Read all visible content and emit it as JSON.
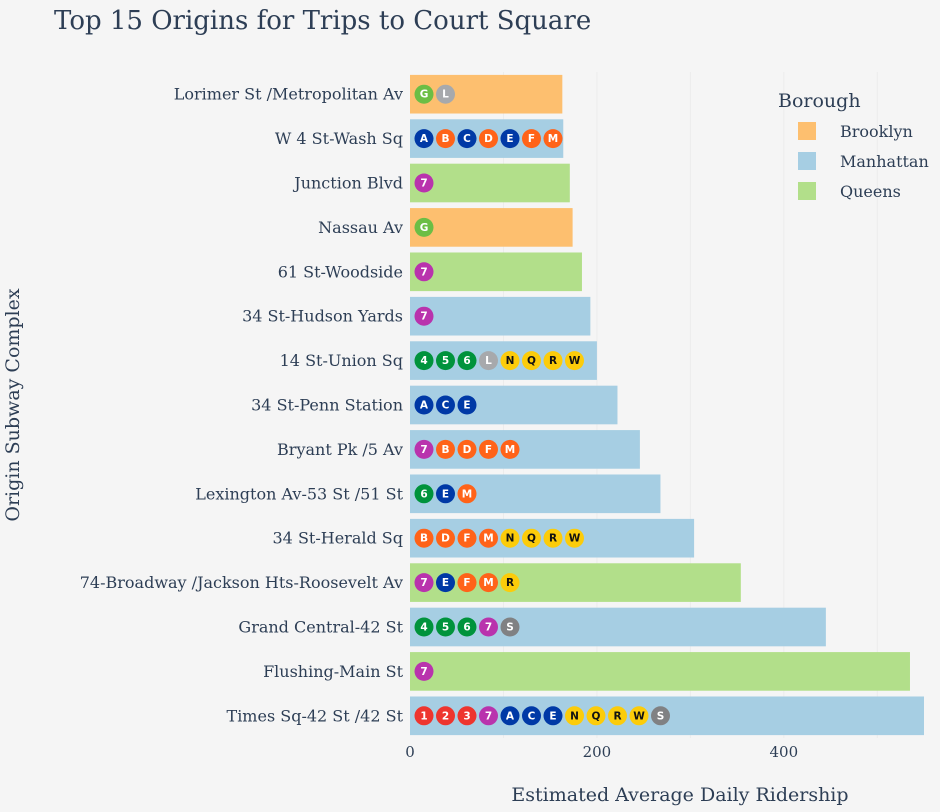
{
  "chart_data": {
    "type": "bar",
    "orientation": "horizontal",
    "title": "Top 15 Origins for Trips to Court Square",
    "xlabel": "Estimated Average Daily Ridership",
    "ylabel": "Origin Subway Complex",
    "xlim": [
      0,
      550
    ],
    "x_ticks": [
      0,
      200,
      400
    ],
    "grid": "vertical",
    "legend": {
      "title": "Borough",
      "placement": "top-right",
      "entries": [
        {
          "name": "Brooklyn",
          "color": "#fdbf6f"
        },
        {
          "name": "Manhattan",
          "color": "#a6cee3"
        },
        {
          "name": "Queens",
          "color": "#b2df8a"
        }
      ]
    },
    "bars": [
      {
        "label": "Lorimer St /Metropolitan Av",
        "value": 163,
        "borough": "Brooklyn",
        "lines": [
          "G",
          "L"
        ]
      },
      {
        "label": "W 4 St-Wash Sq",
        "value": 164,
        "borough": "Manhattan",
        "lines": [
          "A",
          "B",
          "C",
          "D",
          "E",
          "F",
          "M"
        ]
      },
      {
        "label": "Junction Blvd",
        "value": 171,
        "borough": "Queens",
        "lines": [
          "7"
        ]
      },
      {
        "label": "Nassau Av",
        "value": 174,
        "borough": "Brooklyn",
        "lines": [
          "G"
        ]
      },
      {
        "label": "61 St-Woodside",
        "value": 184,
        "borough": "Queens",
        "lines": [
          "7"
        ]
      },
      {
        "label": "34 St-Hudson Yards",
        "value": 193,
        "borough": "Manhattan",
        "lines": [
          "7"
        ]
      },
      {
        "label": "14 St-Union Sq",
        "value": 200,
        "borough": "Manhattan",
        "lines": [
          "4",
          "5",
          "6",
          "L",
          "N",
          "Q",
          "R",
          "W"
        ]
      },
      {
        "label": "34 St-Penn Station",
        "value": 222,
        "borough": "Manhattan",
        "lines": [
          "A",
          "C",
          "E"
        ]
      },
      {
        "label": "Bryant Pk /5 Av",
        "value": 246,
        "borough": "Manhattan",
        "lines": [
          "7",
          "B",
          "D",
          "F",
          "M"
        ]
      },
      {
        "label": "Lexington Av-53 St /51 St",
        "value": 268,
        "borough": "Manhattan",
        "lines": [
          "6",
          "E",
          "M"
        ]
      },
      {
        "label": "34 St-Herald Sq",
        "value": 304,
        "borough": "Manhattan",
        "lines": [
          "B",
          "D",
          "F",
          "M",
          "N",
          "Q",
          "R",
          "W"
        ]
      },
      {
        "label": "74-Broadway /Jackson Hts-Roosevelt Av",
        "value": 354,
        "borough": "Queens",
        "lines": [
          "7",
          "E",
          "F",
          "M",
          "R"
        ]
      },
      {
        "label": "Grand Central-42 St",
        "value": 445,
        "borough": "Manhattan",
        "lines": [
          "4",
          "5",
          "6",
          "7",
          "S"
        ]
      },
      {
        "label": "Flushing-Main St",
        "value": 535,
        "borough": "Queens",
        "lines": [
          "7"
        ]
      },
      {
        "label": "Times Sq-42 St /42 St",
        "value": 550,
        "borough": "Manhattan",
        "lines": [
          "1",
          "2",
          "3",
          "7",
          "A",
          "C",
          "E",
          "N",
          "Q",
          "R",
          "W",
          "S"
        ]
      }
    ],
    "line_colors": {
      "1": "#ee352e",
      "2": "#ee352e",
      "3": "#ee352e",
      "4": "#00933c",
      "5": "#00933c",
      "6": "#00933c",
      "7": "#b933ad",
      "A": "#0039a6",
      "C": "#0039a6",
      "E": "#0039a6",
      "B": "#ff6319",
      "D": "#ff6319",
      "F": "#ff6319",
      "M": "#ff6319",
      "G": "#6cbe45",
      "L": "#a7a9ac",
      "S": "#808183",
      "N": "#fccc0a",
      "Q": "#fccc0a",
      "R": "#fccc0a",
      "W": "#fccc0a"
    },
    "dark_text_lines": [
      "N",
      "Q",
      "R",
      "W"
    ]
  }
}
